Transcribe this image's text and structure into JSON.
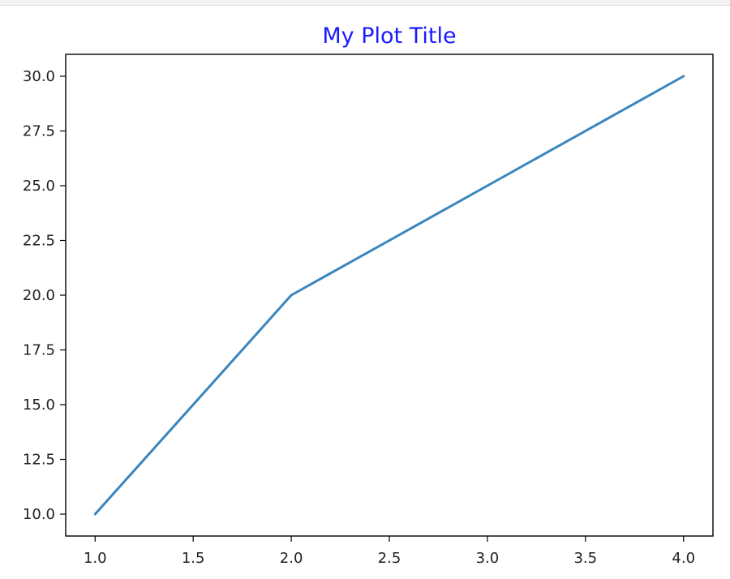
{
  "colors": {
    "title": "#1a1aff",
    "line": "#3a86bf",
    "axes": "#000000",
    "text": "#222222"
  },
  "chart_data": {
    "type": "line",
    "title": "My Plot Title",
    "xlabel": "",
    "ylabel": "",
    "x": [
      1.0,
      2.0,
      3.0,
      4.0
    ],
    "series": [
      {
        "name": "",
        "values": [
          10.0,
          20.0,
          25.0,
          30.0
        ]
      }
    ],
    "xlim": [
      0.85,
      4.15
    ],
    "ylim": [
      9.0,
      31.0
    ],
    "xticks": [
      "1.0",
      "1.5",
      "2.0",
      "2.5",
      "3.0",
      "3.5",
      "4.0"
    ],
    "xtick_values": [
      1.0,
      1.5,
      2.0,
      2.5,
      3.0,
      3.5,
      4.0
    ],
    "yticks": [
      "10.0",
      "12.5",
      "15.0",
      "17.5",
      "20.0",
      "22.5",
      "25.0",
      "27.5",
      "30.0"
    ],
    "ytick_values": [
      10.0,
      12.5,
      15.0,
      17.5,
      20.0,
      22.5,
      25.0,
      27.5,
      30.0
    ],
    "grid": false,
    "legend": "none"
  }
}
